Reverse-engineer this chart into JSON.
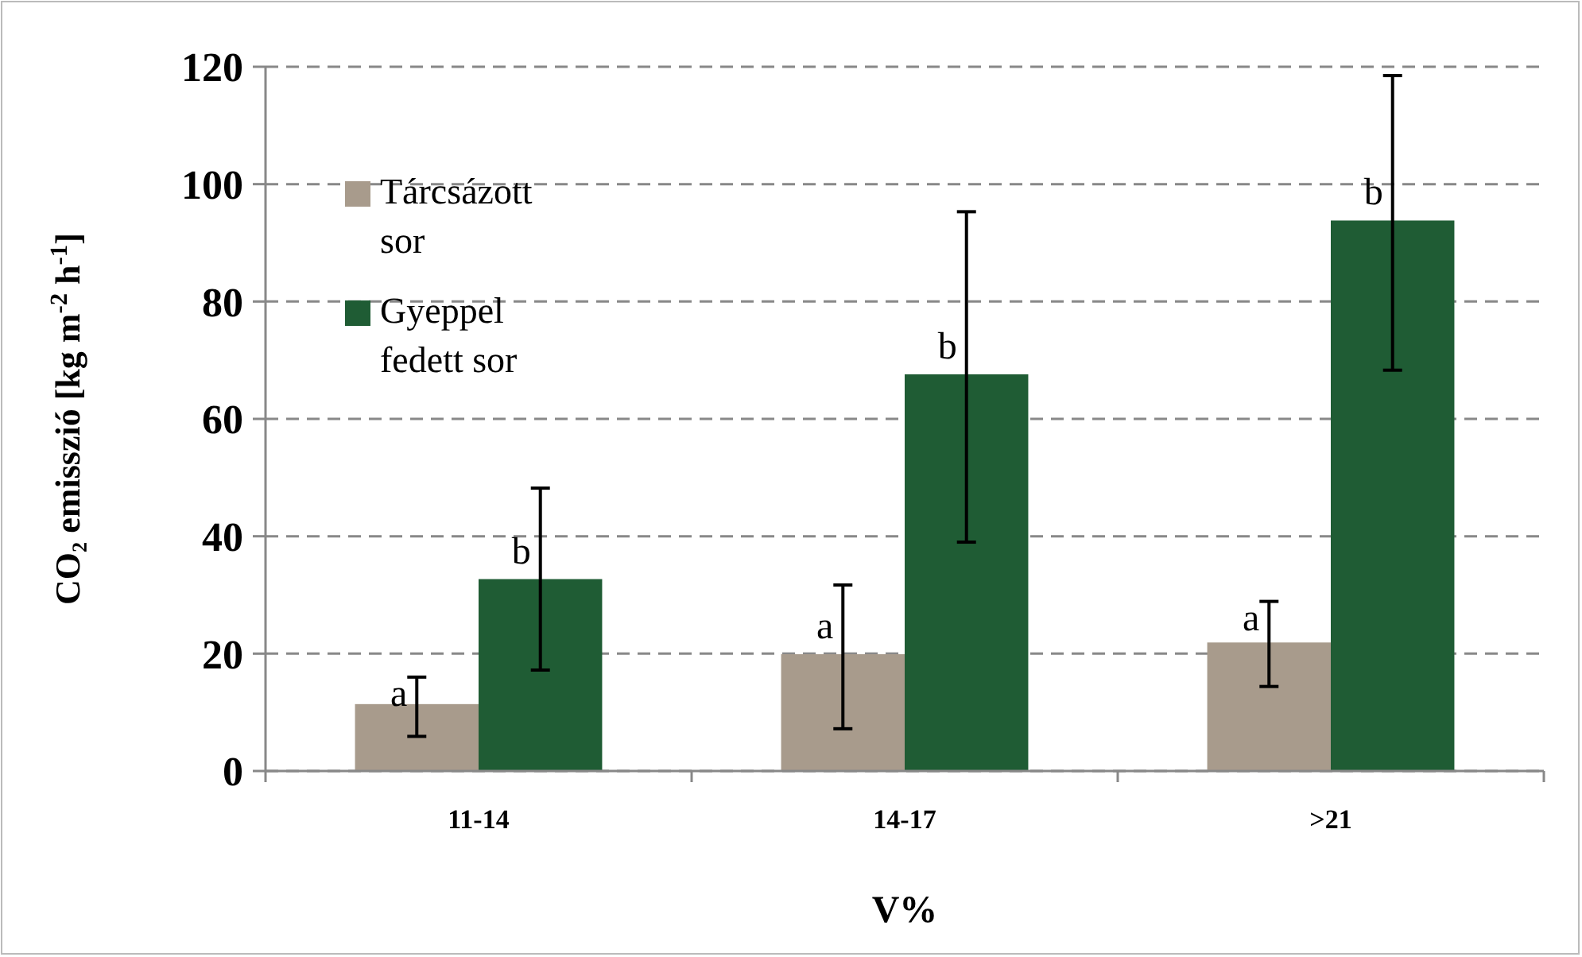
{
  "chart_data": {
    "type": "bar",
    "xlabel": "V%",
    "ylabel": "CO₂ emisszió [kg  m$^{-2}$ h$^{-1}$]",
    "categories": [
      "11-14",
      "14-17",
      ">21"
    ],
    "series": [
      {
        "name": "Tárcsázott sor",
        "color": "#a89b8c",
        "values": [
          11.4,
          19.9,
          21.9
        ],
        "errors": [
          [
            5.9,
            16.0
          ],
          [
            7.2,
            31.7
          ],
          [
            14.4,
            28.9
          ]
        ],
        "value_labels": [
          "a",
          "a",
          "a"
        ]
      },
      {
        "name": "Gyeppel fedett sor",
        "color": "#1f5c34",
        "values": [
          32.7,
          67.6,
          93.8
        ],
        "errors": [
          [
            17.2,
            48.2
          ],
          [
            39.0,
            95.3
          ],
          [
            68.3,
            118.5
          ]
        ],
        "value_labels": [
          "b",
          "b",
          "b"
        ]
      }
    ],
    "ylim": [
      0,
      120
    ],
    "yticks": [
      0,
      20,
      40,
      60,
      80,
      100,
      120
    ],
    "grid": "y",
    "legend": "top left"
  }
}
